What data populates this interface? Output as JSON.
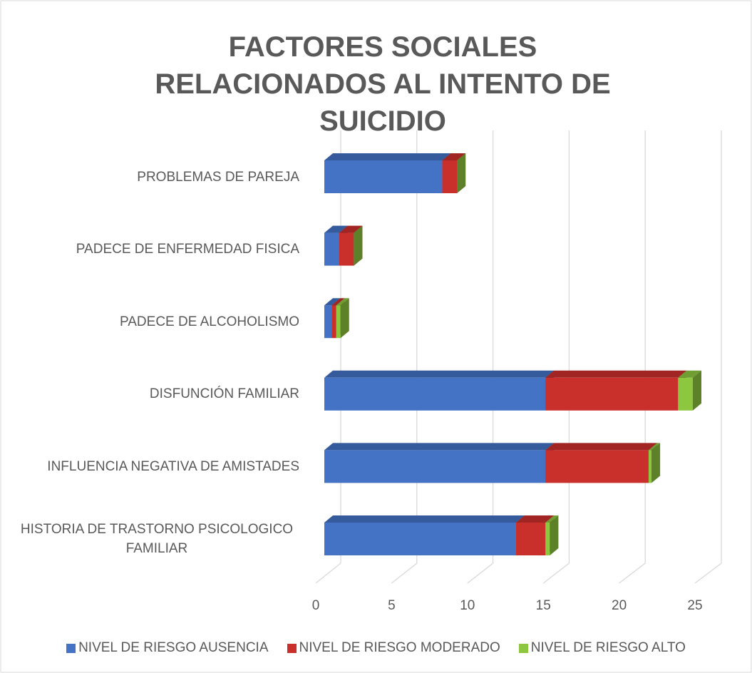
{
  "chart_data": {
    "type": "bar3d_stacked_horizontal",
    "title": "FACTORES SOCIALES RELACIONADOS AL INTENTO DE SUICIDIO",
    "categories": [
      "HISTORIA DE TRASTORNO PSICOLOGICO FAMILIAR",
      "INFLUENCIA NEGATIVA DE AMISTADES",
      "DISFUNCIÓN FAMILIAR",
      "PADECE DE ALCOHOLISMO",
      "PADECE DE ENFERMEDAD FISICA",
      "PROBLEMAS DE PAREJA"
    ],
    "series": [
      {
        "name": "NIVEL DE RIESGO AUSENCIA",
        "color": "#4472c4",
        "values": [
          13,
          15,
          15,
          0.5,
          1,
          8
        ]
      },
      {
        "name": "NIVEL DE RIESGO MODERADO",
        "color": "#c9302c",
        "values": [
          2,
          7,
          9,
          0.3,
          1,
          1
        ]
      },
      {
        "name": "NIVEL DE RIESGO ALTO",
        "color": "#8dc63f",
        "values": [
          0.3,
          0.2,
          1,
          0.3,
          0,
          0
        ]
      }
    ],
    "xlim": [
      0,
      25
    ],
    "xticks": [
      0,
      5,
      10,
      15,
      20,
      25
    ],
    "grid": true,
    "legend": "bottom"
  }
}
